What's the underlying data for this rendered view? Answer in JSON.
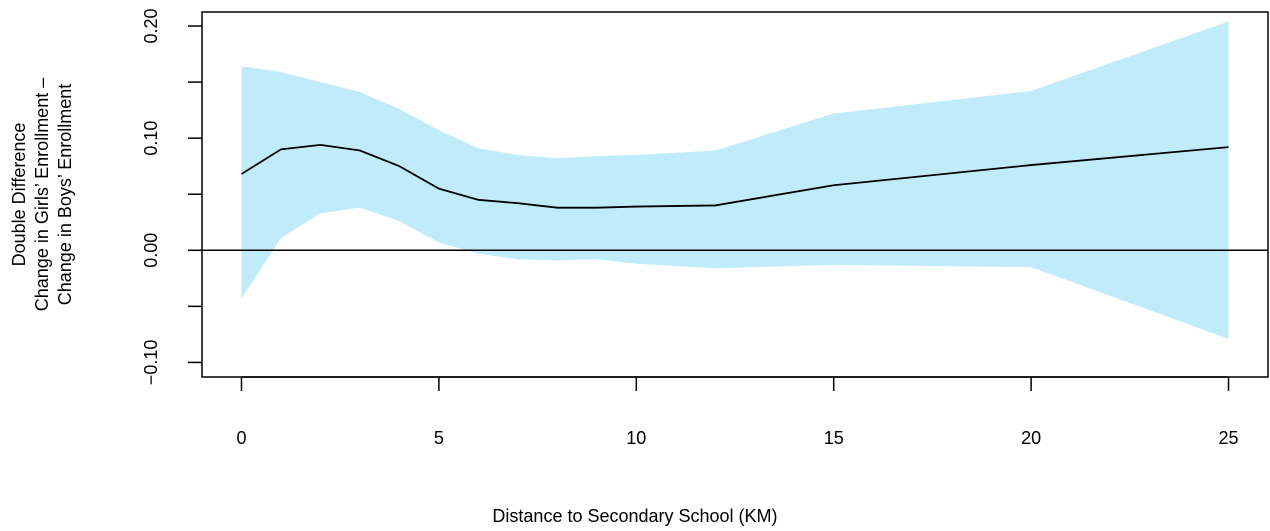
{
  "chart_data": {
    "type": "line",
    "x_label": "Distance to Secondary School (KM)",
    "y_label": [
      "Double Difference",
      "Change in Girls’ Enrollment –",
      "Change in Boys’ Enrollment"
    ],
    "x": [
      0,
      1,
      2,
      3,
      4,
      5,
      6,
      7,
      8,
      9,
      10,
      12,
      15,
      20,
      25
    ],
    "values": [
      0.068,
      0.09,
      0.094,
      0.089,
      0.075,
      0.055,
      0.045,
      0.042,
      0.038,
      0.038,
      0.039,
      0.04,
      0.058,
      0.076,
      0.092
    ],
    "upper": [
      0.164,
      0.159,
      0.15,
      0.141,
      0.126,
      0.107,
      0.091,
      0.085,
      0.082,
      0.084,
      0.085,
      0.089,
      0.122,
      0.142,
      0.204
    ],
    "lower": [
      -0.043,
      0.011,
      0.033,
      0.038,
      0.026,
      0.007,
      -0.003,
      -0.008,
      -0.009,
      -0.008,
      -0.012,
      -0.016,
      -0.013,
      -0.015,
      -0.079
    ],
    "color": "#000000",
    "band_color": "#bfebfb",
    "hline": 0,
    "xlim": [
      -1,
      26
    ],
    "ylim": [
      -0.113,
      0.2125
    ],
    "xticks": [
      0,
      5,
      10,
      15,
      20,
      25
    ],
    "yticks": [
      {
        "value": -0.1,
        "label": "−0.10"
      },
      {
        "value": -0.05,
        "label": null
      },
      {
        "value": 0,
        "label": "0.00"
      },
      {
        "value": 0.05,
        "label": null
      },
      {
        "value": 0.1,
        "label": "0.10"
      },
      {
        "value": 0.15,
        "label": null
      },
      {
        "value": 0.2,
        "label": "0.20"
      }
    ]
  }
}
